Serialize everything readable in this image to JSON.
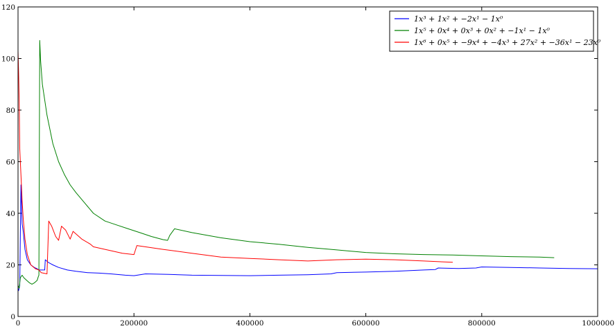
{
  "chart_data": {
    "type": "line",
    "xlim": [
      0,
      1000000
    ],
    "ylim": [
      0,
      120
    ],
    "x_ticks": [
      0,
      200000,
      400000,
      600000,
      800000,
      1000000
    ],
    "y_ticks": [
      0,
      20,
      40,
      60,
      80,
      100,
      120
    ],
    "x_tick_labels": [
      "0",
      "200000",
      "400000",
      "600000",
      "800000",
      "1000000"
    ],
    "y_tick_labels": [
      "0",
      "20",
      "40",
      "60",
      "80",
      "100",
      "120"
    ],
    "grid": false,
    "legend_position": "top-right",
    "series": [
      {
        "name": "1x³ + 1x² + −2x¹ − 1x⁰",
        "color": "#0000ff",
        "points": [
          [
            0,
            11
          ],
          [
            1000,
            10
          ],
          [
            3000,
            12
          ],
          [
            5000,
            51
          ],
          [
            7000,
            36
          ],
          [
            9000,
            33
          ],
          [
            12000,
            26
          ],
          [
            16000,
            22
          ],
          [
            22000,
            20
          ],
          [
            28000,
            19
          ],
          [
            33000,
            18.5
          ],
          [
            36000,
            18
          ],
          [
            46000,
            18
          ],
          [
            47000,
            22
          ],
          [
            52000,
            21
          ],
          [
            60000,
            20
          ],
          [
            70000,
            19
          ],
          [
            85000,
            18
          ],
          [
            100000,
            17.5
          ],
          [
            120000,
            17
          ],
          [
            140000,
            16.8
          ],
          [
            160000,
            16.5
          ],
          [
            185000,
            16
          ],
          [
            200000,
            15.8
          ],
          [
            220000,
            16.5
          ],
          [
            260000,
            16.3
          ],
          [
            300000,
            16
          ],
          [
            350000,
            15.9
          ],
          [
            400000,
            15.8
          ],
          [
            450000,
            16
          ],
          [
            500000,
            16.2
          ],
          [
            540000,
            16.5
          ],
          [
            550000,
            17
          ],
          [
            600000,
            17.2
          ],
          [
            650000,
            17.5
          ],
          [
            700000,
            18
          ],
          [
            720000,
            18.2
          ],
          [
            725000,
            18.8
          ],
          [
            760000,
            18.6
          ],
          [
            790000,
            18.8
          ],
          [
            800000,
            19.2
          ],
          [
            850000,
            19
          ],
          [
            900000,
            18.8
          ],
          [
            950000,
            18.6
          ],
          [
            1000000,
            18.5
          ]
        ]
      },
      {
        "name": "1x⁵ + 0x⁴ + 0x³ + 0x² + −1x¹ − 1x⁰",
        "color": "#008000",
        "points": [
          [
            0,
            12
          ],
          [
            2000,
            11
          ],
          [
            4000,
            15
          ],
          [
            7000,
            16
          ],
          [
            10000,
            15
          ],
          [
            15000,
            14
          ],
          [
            20000,
            13
          ],
          [
            24000,
            12.5
          ],
          [
            28000,
            13
          ],
          [
            33000,
            14
          ],
          [
            35000,
            15.5
          ],
          [
            36000,
            16
          ],
          [
            37500,
            107
          ],
          [
            39000,
            99
          ],
          [
            42000,
            90
          ],
          [
            50000,
            78
          ],
          [
            60000,
            67
          ],
          [
            70000,
            60
          ],
          [
            80000,
            55
          ],
          [
            90000,
            51
          ],
          [
            100000,
            48
          ],
          [
            115000,
            44
          ],
          [
            130000,
            40
          ],
          [
            150000,
            37
          ],
          [
            170000,
            35.5
          ],
          [
            190000,
            34
          ],
          [
            210000,
            32.5
          ],
          [
            230000,
            31
          ],
          [
            250000,
            29.8
          ],
          [
            258000,
            29.5
          ],
          [
            262000,
            31.5
          ],
          [
            270000,
            34
          ],
          [
            300000,
            32.5
          ],
          [
            350000,
            30.5
          ],
          [
            400000,
            29
          ],
          [
            450000,
            28
          ],
          [
            500000,
            26.8
          ],
          [
            550000,
            25.8
          ],
          [
            600000,
            24.8
          ],
          [
            650000,
            24.3
          ],
          [
            700000,
            24
          ],
          [
            750000,
            23.8
          ],
          [
            800000,
            23.5
          ],
          [
            850000,
            23.2
          ],
          [
            900000,
            23
          ],
          [
            925000,
            22.8
          ]
        ]
      },
      {
        "name": "1x⁶ + 0x⁵ + −9x⁴ + −4x³ + 27x² + −36x¹ − 23x⁰",
        "color": "#ff0000",
        "points": [
          [
            0,
            103
          ],
          [
            1000,
            95
          ],
          [
            2000,
            83
          ],
          [
            3000,
            65
          ],
          [
            5000,
            55
          ],
          [
            7000,
            45
          ],
          [
            9000,
            38
          ],
          [
            12000,
            30
          ],
          [
            16000,
            24
          ],
          [
            22000,
            20
          ],
          [
            30000,
            18.5
          ],
          [
            36000,
            18
          ],
          [
            40000,
            17
          ],
          [
            50000,
            16.5
          ],
          [
            53000,
            37
          ],
          [
            58000,
            35
          ],
          [
            65000,
            31
          ],
          [
            70000,
            29.5
          ],
          [
            75000,
            35
          ],
          [
            82000,
            33.5
          ],
          [
            90000,
            30
          ],
          [
            95000,
            33
          ],
          [
            110000,
            30
          ],
          [
            125000,
            28
          ],
          [
            130000,
            27
          ],
          [
            150000,
            26
          ],
          [
            160000,
            25.5
          ],
          [
            180000,
            24.5
          ],
          [
            200000,
            24
          ],
          [
            205000,
            27.5
          ],
          [
            250000,
            26
          ],
          [
            300000,
            24.5
          ],
          [
            350000,
            23
          ],
          [
            400000,
            22.5
          ],
          [
            450000,
            22
          ],
          [
            500000,
            21.5
          ],
          [
            550000,
            22
          ],
          [
            600000,
            22.2
          ],
          [
            650000,
            22
          ],
          [
            700000,
            21.5
          ],
          [
            750000,
            21
          ]
        ]
      }
    ]
  }
}
